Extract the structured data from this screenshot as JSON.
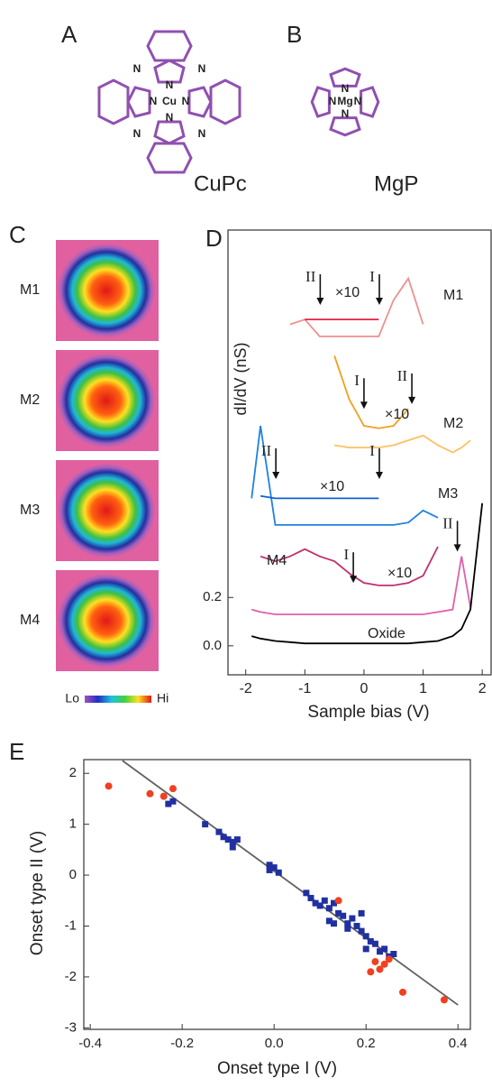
{
  "panels": {
    "A": {
      "label": "A",
      "molecule": "CuPc",
      "metal": "Cu",
      "nitrogen": "N"
    },
    "B": {
      "label": "B",
      "molecule": "MgP",
      "metal": "Mg",
      "nitrogen": "N"
    },
    "C": {
      "label": "C",
      "images": [
        "M1",
        "M2",
        "M3",
        "M4"
      ],
      "colorbar": {
        "low": "Lo",
        "high": "Hi"
      }
    }
  },
  "chart_data": [
    {
      "type": "line",
      "panel": "D",
      "xlabel": "Sample bias (V)",
      "ylabel": "dI/dV (nS)",
      "x": [
        -1.9,
        -1.75,
        -1.5,
        -1.25,
        -1,
        -0.75,
        -0.5,
        -0.25,
        0,
        0.25,
        0.5,
        0.75,
        1,
        1.25,
        1.5,
        1.65,
        1.8,
        2
      ],
      "xlim": [
        -2.3,
        2.15
      ],
      "ylim": [
        -0.12,
        1.72
      ],
      "xticks": [
        -2,
        -1,
        0,
        1,
        2
      ],
      "yticks": [
        {
          "value": 0,
          "label": "0.0"
        },
        {
          "value": 0.2,
          "label": "0.2"
        }
      ],
      "magnification": "×10",
      "series": [
        {
          "name": "M1",
          "color": "#f09090",
          "values": [
            null,
            null,
            null,
            1.33,
            1.35,
            1.28,
            1.28,
            1.28,
            1.28,
            1.28,
            1.43,
            1.52,
            1.33,
            null,
            null,
            null,
            null,
            null
          ],
          "magnified": {
            "color": "#e82040",
            "values": [
              null,
              null,
              null,
              null,
              1.35,
              1.35,
              1.35,
              1.35,
              1.35,
              1.35,
              null,
              null,
              null,
              null,
              null,
              null,
              null,
              null
            ]
          }
        },
        {
          "name": "M2",
          "color": "#ffc060",
          "values": [
            null,
            null,
            null,
            null,
            null,
            null,
            0.83,
            0.82,
            0.82,
            0.82,
            0.83,
            0.85,
            0.87,
            0.83,
            0.8,
            0.82,
            0.85,
            null
          ],
          "magnified": {
            "color": "#f0a020",
            "values": [
              null,
              null,
              null,
              null,
              null,
              null,
              1.2,
              1.02,
              0.91,
              0.9,
              0.91,
              0.98,
              null,
              null,
              null,
              null,
              null,
              null
            ]
          }
        },
        {
          "name": "M3",
          "color": "#2080e0",
          "values": [
            0.61,
            0.91,
            0.5,
            0.5,
            0.5,
            0.5,
            0.5,
            0.5,
            0.5,
            0.5,
            0.5,
            0.51,
            0.56,
            0.53,
            null,
            null,
            null,
            null
          ],
          "magnified": {
            "color": "#1060d0",
            "values": [
              null,
              0.62,
              0.61,
              0.61,
              0.61,
              0.61,
              0.61,
              0.61,
              0.61,
              0.61,
              null,
              null,
              null,
              null,
              null,
              null,
              null,
              null
            ]
          }
        },
        {
          "name": "M4",
          "color": "#e060a8",
          "values": [
            0.15,
            0.14,
            0.13,
            0.13,
            0.13,
            0.13,
            0.13,
            0.13,
            0.13,
            0.13,
            0.13,
            0.13,
            0.13,
            0.14,
            0.15,
            0.37,
            0.16,
            null
          ],
          "magnified": {
            "color": "#c0306e",
            "values": [
              null,
              0.37,
              0.35,
              0.37,
              0.4,
              0.37,
              0.35,
              0.3,
              0.26,
              0.25,
              0.25,
              0.26,
              0.29,
              0.41,
              null,
              null,
              null,
              null
            ]
          }
        },
        {
          "name": "Oxide",
          "color": "#000000",
          "values": [
            0.04,
            0.03,
            0.02,
            0.015,
            0.01,
            0.01,
            0.01,
            0.01,
            0.01,
            0.01,
            0.01,
            0.01,
            0.015,
            0.02,
            0.04,
            0.07,
            0.15,
            0.59
          ]
        }
      ],
      "annotations": [
        {
          "text": "II",
          "x": -0.74,
          "y": 1.41
        },
        {
          "text": "I",
          "x": 0.26,
          "y": 1.41
        },
        {
          "text": "I",
          "x": 0,
          "y": 0.98
        },
        {
          "text": "II",
          "x": 0.81,
          "y": 1.0
        },
        {
          "text": "II",
          "x": -1.49,
          "y": 0.69
        },
        {
          "text": "I",
          "x": 0.26,
          "y": 0.69
        },
        {
          "text": "I",
          "x": -0.18,
          "y": 0.26
        },
        {
          "text": "II",
          "x": 1.58,
          "y": 0.39
        }
      ]
    },
    {
      "type": "scatter",
      "panel": "E",
      "xlabel": "Onset type I (V)",
      "ylabel": "Onset type II (V)",
      "xlim": [
        -0.414,
        0.427
      ],
      "ylim": [
        -3.03,
        2.27
      ],
      "xticks": [
        -0.4,
        -0.2,
        {
          "value": 0,
          "label": "0.0"
        },
        0.2,
        0.4
      ],
      "yticks": [
        2,
        1,
        0,
        -1,
        -2,
        -3
      ],
      "series": [
        {
          "color": "#2030a0",
          "marker": "square",
          "x": [
            -0.23,
            -0.22,
            -0.15,
            -0.12,
            -0.11,
            -0.1,
            -0.09,
            -0.08,
            -0.09,
            -0.01,
            0.0,
            0.01,
            -0.01,
            0.07,
            0.08,
            0.09,
            0.1,
            0.11,
            0.12,
            0.13,
            0.14,
            0.15,
            0.12,
            0.13,
            0.16,
            0.17,
            0.18,
            0.19,
            0.2,
            0.21,
            0.2,
            0.22,
            0.23,
            0.24,
            0.25,
            0.26,
            0.19,
            0.16
          ],
          "values": [
            1.4,
            1.45,
            1.0,
            0.85,
            0.75,
            0.7,
            0.65,
            0.7,
            0.55,
            0.2,
            0.15,
            0.05,
            0.1,
            -0.35,
            -0.45,
            -0.55,
            -0.6,
            -0.5,
            -0.65,
            -0.55,
            -0.75,
            -0.8,
            -0.9,
            -0.95,
            -0.95,
            -0.85,
            -1.0,
            -1.1,
            -1.2,
            -1.3,
            -1.45,
            -1.35,
            -1.5,
            -1.45,
            -1.6,
            -1.55,
            -0.75,
            -1.05
          ]
        },
        {
          "color": "#f04020",
          "marker": "circle",
          "x": [
            -0.36,
            -0.27,
            -0.24,
            -0.22,
            0.14,
            0.21,
            0.22,
            0.24,
            0.25,
            0.28,
            0.37,
            0.23
          ],
          "values": [
            1.75,
            1.6,
            1.55,
            1.7,
            -0.5,
            -1.9,
            -1.7,
            -1.75,
            -1.65,
            -2.3,
            -2.45,
            -1.85
          ]
        }
      ],
      "fit": {
        "color": "#606060",
        "x": [
          -0.33,
          0.4
        ],
        "values": [
          2.25,
          -2.55
        ]
      }
    }
  ]
}
